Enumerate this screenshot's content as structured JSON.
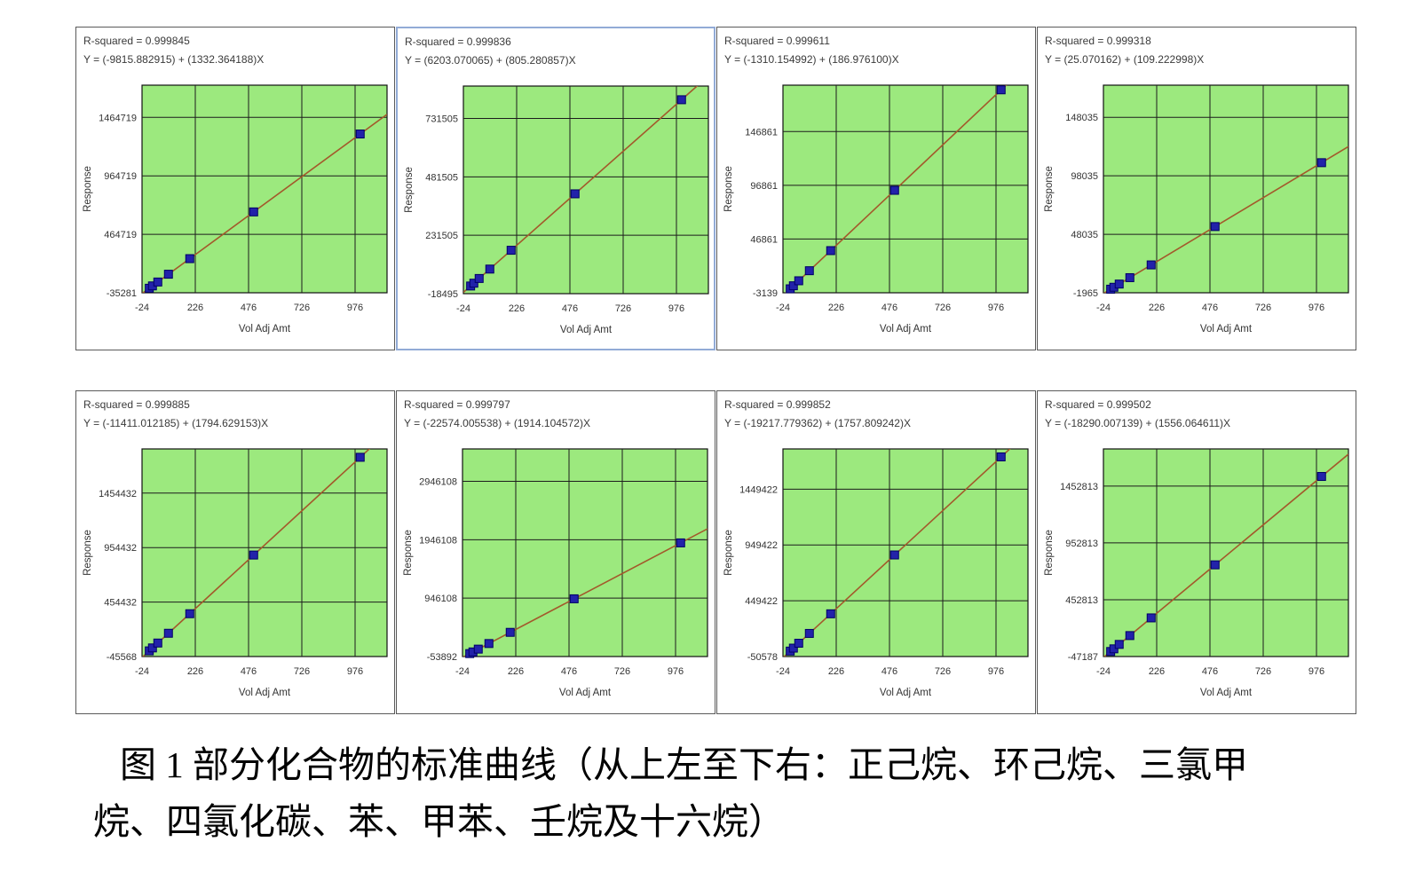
{
  "figure": {
    "caption": {
      "line1": "图 1 部分化合物的标准曲线（从上左至下右：正己烷、环己烷、三氯甲",
      "line2": "烷、四氯化碳、苯、甲苯、壬烷及十六烷）"
    }
  },
  "colors": {
    "plot_background": "#9CE97E",
    "gridline": "#1c1c1c",
    "regression_line": "#a3592b",
    "data_point_fill": "#2222aa",
    "data_point_border": "#000066",
    "panel_border": "#5a5a5a",
    "selected_panel_border": "#92abd6",
    "text": "#333333"
  },
  "chart_data": [
    {
      "type": "scatter",
      "r_squared_label": "R-squared = 0.999845",
      "equation_label": "Y = (-9815.882915) + (1332.364188)X",
      "r_squared": 0.999845,
      "intercept": -9815.882915,
      "slope": 1332.364188,
      "xlabel": "Vol Adj Amt",
      "ylabel": "Response",
      "x_ticks": [
        -24,
        226,
        476,
        726,
        976
      ],
      "x_range": [
        -24,
        1126
      ],
      "y_ticks": [
        -35281,
        464719,
        964719,
        1464719
      ],
      "y_range": [
        -35281,
        1740000
      ],
      "points_x": [
        10,
        25,
        50,
        100,
        200,
        500,
        1000
      ],
      "grid": true
    },
    {
      "type": "scatter",
      "r_squared_label": "R-squared = 0.999836",
      "equation_label": "Y = (6203.070065) + (805.280857)X",
      "r_squared": 0.999836,
      "intercept": 6203.070065,
      "slope": 805.280857,
      "xlabel": "Vol Adj Amt",
      "ylabel": "Response",
      "x_ticks": [
        -24,
        226,
        476,
        726,
        976
      ],
      "x_range": [
        -24,
        1126
      ],
      "y_ticks": [
        -18495,
        231505,
        481505,
        731505
      ],
      "y_range": [
        -18495,
        870000
      ],
      "points_x": [
        10,
        25,
        50,
        100,
        200,
        500,
        1000
      ],
      "grid": true
    },
    {
      "type": "scatter",
      "r_squared_label": "R-squared = 0.999611",
      "equation_label": "Y = (-1310.154992) + (186.976100)X",
      "r_squared": 0.999611,
      "intercept": -1310.154992,
      "slope": 186.9761,
      "xlabel": "Vol Adj Amt",
      "ylabel": "Response",
      "x_ticks": [
        -24,
        226,
        476,
        726,
        976
      ],
      "x_range": [
        -24,
        1126
      ],
      "y_ticks": [
        -3139,
        46861,
        96861,
        146861
      ],
      "y_range": [
        -3139,
        190000
      ],
      "points_x": [
        10,
        25,
        50,
        100,
        200,
        500,
        1000
      ],
      "grid": true
    },
    {
      "type": "scatter",
      "r_squared_label": "R-squared = 0.999318",
      "equation_label": "Y = (25.070162) + (109.222998)X",
      "r_squared": 0.999318,
      "intercept": 25.070162,
      "slope": 109.222998,
      "xlabel": "Vol Adj Amt",
      "ylabel": "Response",
      "x_ticks": [
        -24,
        226,
        476,
        726,
        976
      ],
      "x_range": [
        -24,
        1126
      ],
      "y_ticks": [
        -1965,
        48035,
        98035,
        148035
      ],
      "y_range": [
        -1965,
        175500
      ],
      "points_x": [
        10,
        25,
        50,
        100,
        200,
        500,
        1000
      ],
      "grid": true
    },
    {
      "type": "scatter",
      "r_squared_label": "R-squared = 0.999885",
      "equation_label": "Y = (-11411.012185) + (1794.629153)X",
      "r_squared": 0.999885,
      "intercept": -11411.012185,
      "slope": 1794.629153,
      "xlabel": "Vol Adj Amt",
      "ylabel": "Response",
      "x_ticks": [
        -24,
        226,
        476,
        726,
        976
      ],
      "x_range": [
        -24,
        1126
      ],
      "y_ticks": [
        -45568,
        454432,
        954432,
        1454432
      ],
      "y_range": [
        -45568,
        1860000
      ],
      "points_x": [
        10,
        25,
        50,
        100,
        200,
        500,
        1000
      ],
      "grid": true
    },
    {
      "type": "scatter",
      "r_squared_label": "R-squared = 0.999797",
      "equation_label": "Y = (-22574.005538) + (1914.104572)X",
      "r_squared": 0.999797,
      "intercept": -22574.005538,
      "slope": 1914.104572,
      "xlabel": "Vol Adj Amt",
      "ylabel": "Response",
      "x_ticks": [
        -24,
        226,
        476,
        726,
        976
      ],
      "x_range": [
        -24,
        1126
      ],
      "y_ticks": [
        -53892,
        946108,
        1946108,
        2946108
      ],
      "y_range": [
        -53892,
        3500000
      ],
      "points_x": [
        10,
        25,
        50,
        100,
        200,
        500,
        1000
      ],
      "grid": true
    },
    {
      "type": "scatter",
      "r_squared_label": "R-squared = 0.999852",
      "equation_label": "Y = (-19217.779362) + (1757.809242)X",
      "r_squared": 0.999852,
      "intercept": -19217.779362,
      "slope": 1757.809242,
      "xlabel": "Vol Adj Amt",
      "ylabel": "Response",
      "x_ticks": [
        -24,
        226,
        476,
        726,
        976
      ],
      "x_range": [
        -24,
        1126
      ],
      "y_ticks": [
        -50578,
        449422,
        949422,
        1449422
      ],
      "y_range": [
        -50578,
        1810000
      ],
      "points_x": [
        10,
        25,
        50,
        100,
        200,
        500,
        1000
      ],
      "grid": true
    },
    {
      "type": "scatter",
      "r_squared_label": "R-squared = 0.999502",
      "equation_label": "Y = (-18290.007139) + (1556.064611)X",
      "r_squared": 0.999502,
      "intercept": -18290.007139,
      "slope": 1556.064611,
      "xlabel": "Vol Adj Amt",
      "ylabel": "Response",
      "x_ticks": [
        -24,
        226,
        476,
        726,
        976
      ],
      "x_range": [
        -24,
        1126
      ],
      "y_ticks": [
        -47187,
        452813,
        952813,
        1452813
      ],
      "y_range": [
        -47187,
        1780000
      ],
      "points_x": [
        10,
        25,
        50,
        100,
        200,
        500,
        1000
      ],
      "grid": true
    }
  ]
}
